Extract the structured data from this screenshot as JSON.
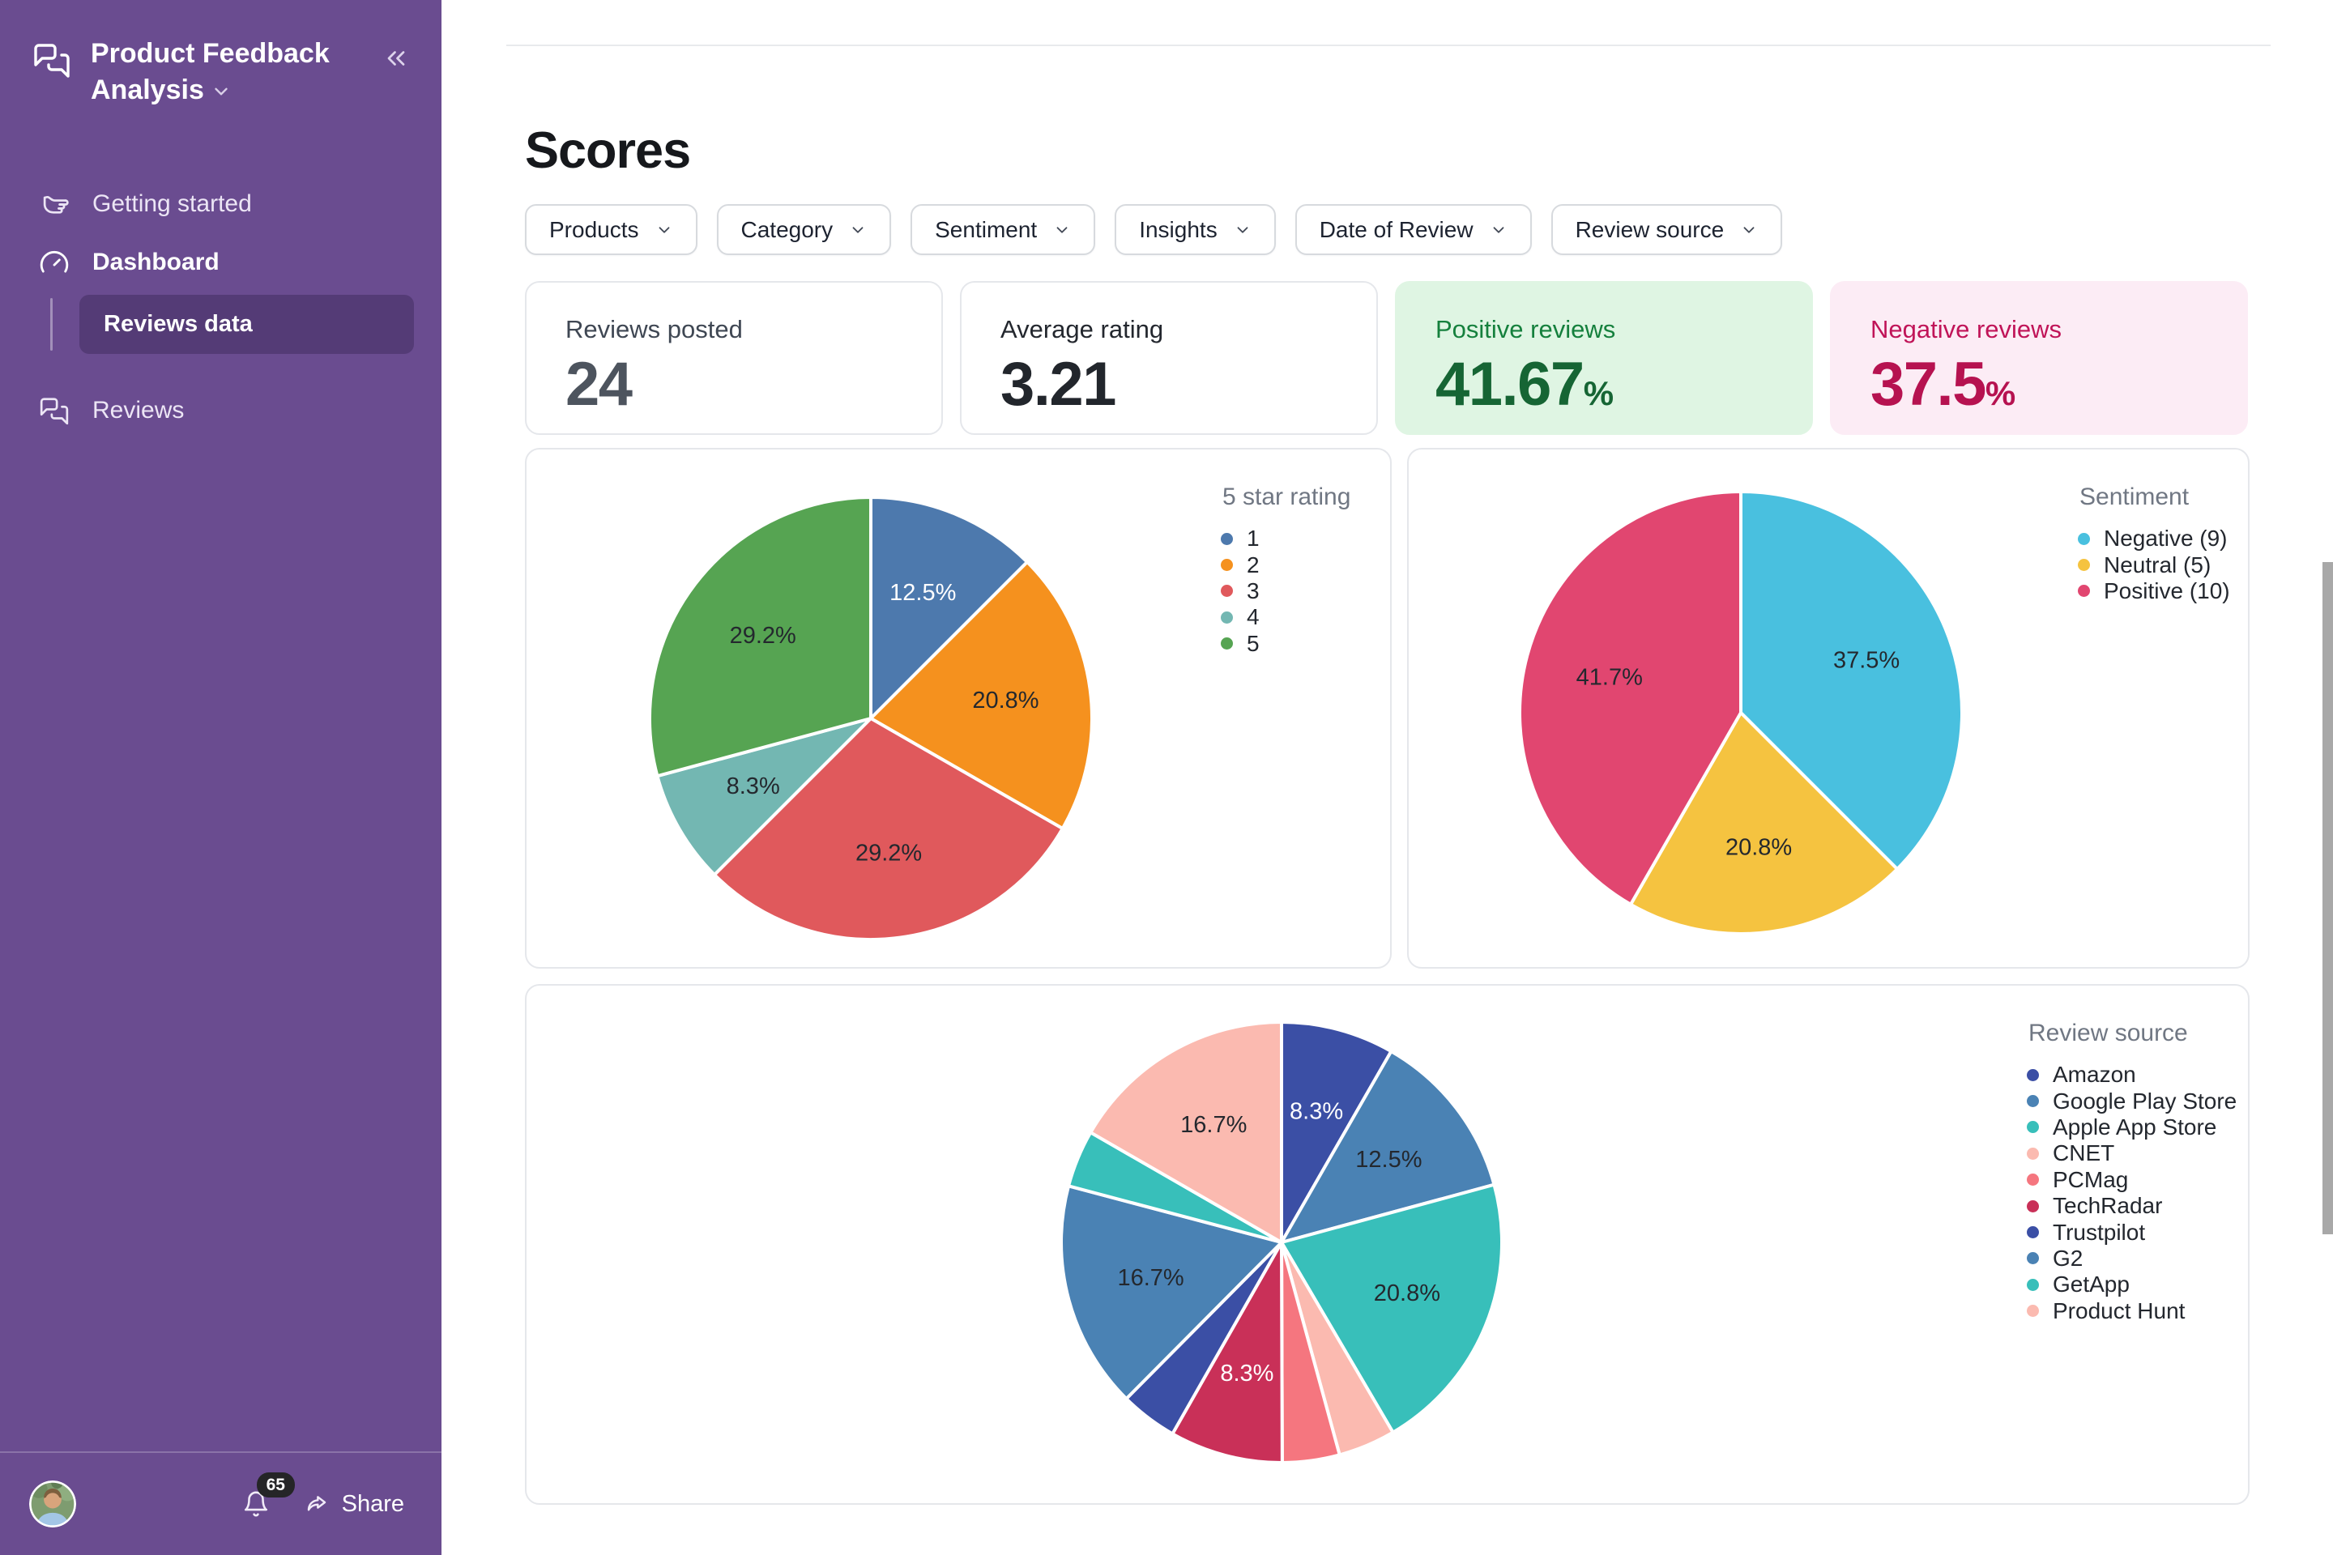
{
  "sidebar": {
    "title": "Product Feedback Analysis",
    "items": [
      {
        "label": "Getting started",
        "icon": "hand-point-right"
      },
      {
        "label": "Dashboard",
        "icon": "gauge"
      },
      {
        "label": "Reviews data",
        "active": true
      },
      {
        "label": "Reviews",
        "icon": "chat-bubbles"
      }
    ],
    "footer": {
      "notification_count": "65",
      "share_label": "Share"
    },
    "colors": {
      "background": "#6a4c90",
      "active_item": "rgba(20,8,40,0.25)"
    }
  },
  "header": {
    "title": "Scores"
  },
  "filters": [
    {
      "label": "Products"
    },
    {
      "label": "Category"
    },
    {
      "label": "Sentiment"
    },
    {
      "label": "Insights"
    },
    {
      "label": "Date of Review"
    },
    {
      "label": "Review source"
    }
  ],
  "stats": [
    {
      "label": "Reviews posted",
      "value": "24",
      "suffix": "",
      "variant": "plain",
      "label_color": "#3f4753",
      "value_color": "#4d545e"
    },
    {
      "label": "Average rating",
      "value": "3.21",
      "suffix": "",
      "variant": "plain",
      "label_color": "#23272e",
      "value_color": "#22262c"
    },
    {
      "label": "Positive reviews",
      "value": "41.67",
      "suffix": "%",
      "variant": "positive",
      "label_color": "#15803d",
      "value_color": "#166534"
    },
    {
      "label": "Negative reviews",
      "value": "37.5",
      "suffix": "%",
      "variant": "negative",
      "label_color": "#c01458",
      "value_color": "#b61250"
    }
  ],
  "chart_data": [
    {
      "id": "five-star",
      "type": "pie",
      "title": "5 star rating",
      "legend_position": "right",
      "slices": [
        {
          "name": "1",
          "value": 12.5,
          "label": "12.5%",
          "color": "#4d79ad",
          "label_color": "#ffffff"
        },
        {
          "name": "2",
          "value": 20.8,
          "label": "20.8%",
          "color": "#f5911e",
          "label_color": "#24282e"
        },
        {
          "name": "3",
          "value": 29.2,
          "label": "29.2%",
          "color": "#e0595c",
          "label_color": "#24282e"
        },
        {
          "name": "4",
          "value": 8.3,
          "label": "8.3%",
          "color": "#73b7b2",
          "label_color": "#24282e"
        },
        {
          "name": "5",
          "value": 29.2,
          "label": "29.2%",
          "color": "#56a452",
          "label_color": "#24282e"
        }
      ]
    },
    {
      "id": "sentiment",
      "type": "pie",
      "title": "Sentiment",
      "legend_position": "right",
      "slices": [
        {
          "name": "Negative (9)",
          "value": 37.5,
          "label": "37.5%",
          "color": "#49c0df",
          "label_color": "#24282e"
        },
        {
          "name": "Neutral (5)",
          "value": 20.8,
          "label": "20.8%",
          "color": "#f5c340",
          "label_color": "#24282e"
        },
        {
          "name": "Positive (10)",
          "value": 41.7,
          "label": "41.7%",
          "color": "#e14670",
          "label_color": "#24282e"
        }
      ]
    },
    {
      "id": "review-source",
      "type": "pie",
      "title": "Review source",
      "legend_position": "right",
      "slices": [
        {
          "name": "Amazon",
          "value": 8.3,
          "label": "8.3%",
          "color": "#3b4fa5",
          "label_color": "#ffffff"
        },
        {
          "name": "Google Play Store",
          "value": 12.5,
          "label": "12.5%",
          "color": "#4a82b4",
          "label_color": "#24282e"
        },
        {
          "name": "Apple App Store",
          "value": 20.8,
          "label": "20.8%",
          "color": "#38bfba",
          "label_color": "#24282e"
        },
        {
          "name": "CNET",
          "value": 4.2,
          "label": "",
          "color": "#fbbab0",
          "label_color": "#24282e"
        },
        {
          "name": "PCMag",
          "value": 4.2,
          "label": "",
          "color": "#f5767f",
          "label_color": "#24282e"
        },
        {
          "name": "TechRadar",
          "value": 8.3,
          "label": "8.3%",
          "color": "#c93058",
          "label_color": "#ffffff"
        },
        {
          "name": "Trustpilot",
          "value": 4.2,
          "label": "",
          "color": "#3b4fa5",
          "label_color": "#ffffff"
        },
        {
          "name": "G2",
          "value": 16.7,
          "label": "16.7%",
          "color": "#4a82b4",
          "label_color": "#24282e"
        },
        {
          "name": "GetApp",
          "value": 4.2,
          "label": "",
          "color": "#38bfba",
          "label_color": "#24282e"
        },
        {
          "name": "Product Hunt",
          "value": 16.7,
          "label": "16.7%",
          "color": "#fbbab0",
          "label_color": "#24282e"
        }
      ]
    }
  ]
}
